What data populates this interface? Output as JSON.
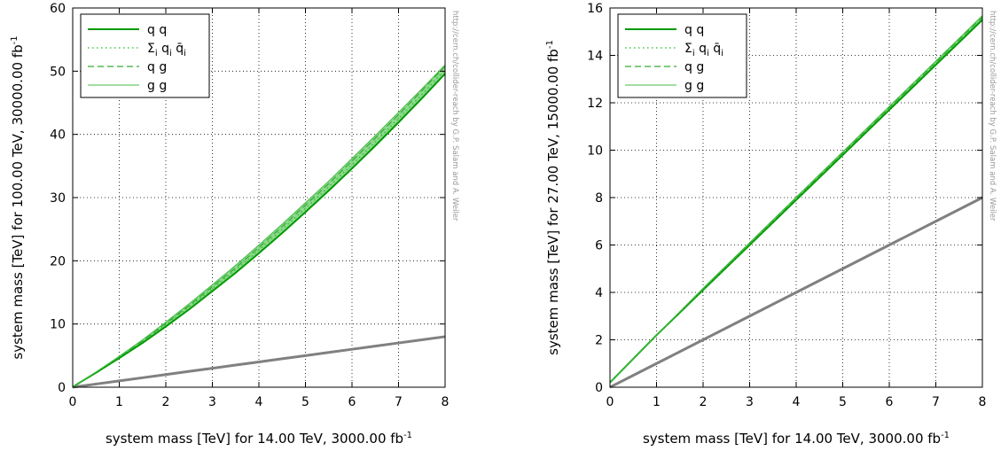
{
  "colors": {
    "qq": "#009900",
    "sum_qqbar": "#22bb22",
    "qg": "#33aa33",
    "gg": "#44bb44",
    "band_fill": "#66cc66",
    "reference": "#808080"
  },
  "credit": "http://cern.ch/collider-reach by G.P. Salam and A. Weiler",
  "chart_data": [
    {
      "type": "line",
      "xlabel": "system mass [TeV] for 14.00 TeV, 3000.00 fb",
      "xlabel_sup": "-1",
      "ylabel": "system mass [TeV] for 100.00 TeV, 30000.00 fb",
      "ylabel_sup": "-1",
      "xlim": [
        0,
        8
      ],
      "ylim": [
        0,
        60
      ],
      "xticks": [
        0,
        1,
        2,
        3,
        4,
        5,
        6,
        7,
        8
      ],
      "yticks": [
        0,
        10,
        20,
        30,
        40,
        50,
        60
      ],
      "grid": true,
      "legend_position": "top-left",
      "legend": [
        {
          "label": "q q",
          "style": "solid-thick"
        },
        {
          "label": "Σi qi q̄i",
          "label_main": "Σ",
          "label_sub1": "i",
          "label_mid": " q",
          "label_sub2": "i",
          "label_end": " q̄",
          "label_sub3": "i",
          "style": "dotted"
        },
        {
          "label": "q g",
          "style": "dashed"
        },
        {
          "label": "g g",
          "style": "solid-thin"
        }
      ],
      "x": [
        0,
        0.1,
        0.5,
        1,
        1.5,
        2,
        2.5,
        3,
        3.5,
        4,
        4.5,
        5,
        5.5,
        6,
        6.5,
        7,
        7.5,
        8
      ],
      "series": [
        {
          "name": "q q",
          "values": [
            0,
            0.5,
            2.3,
            4.6,
            7.0,
            9.6,
            12.3,
            15.2,
            18.1,
            21.2,
            24.4,
            27.7,
            31.1,
            34.6,
            38.2,
            41.9,
            45.7,
            49.6
          ]
        },
        {
          "name": "Σi qi q̄i",
          "values": [
            0,
            0.5,
            2.4,
            4.7,
            7.2,
            9.9,
            12.7,
            15.6,
            18.6,
            21.7,
            25.0,
            28.3,
            31.7,
            35.2,
            38.8,
            42.5,
            46.3,
            50.2
          ]
        },
        {
          "name": "q g",
          "values": [
            0,
            0.5,
            2.4,
            4.8,
            7.3,
            10.1,
            12.9,
            15.9,
            18.9,
            22.1,
            25.4,
            28.8,
            32.2,
            35.8,
            39.4,
            43.1,
            46.9,
            50.8
          ]
        },
        {
          "name": "g g",
          "values": [
            0,
            0.5,
            2.4,
            4.9,
            7.5,
            10.3,
            13.2,
            16.2,
            19.3,
            22.5,
            25.8,
            29.2,
            32.6,
            36.2,
            39.8,
            43.5,
            47.2,
            51.0
          ]
        },
        {
          "name": "",
          "role": "reference",
          "values": [
            0,
            0.1,
            0.5,
            1,
            1.5,
            2,
            2.5,
            3,
            3.5,
            4,
            4.5,
            5,
            5.5,
            6,
            6.5,
            7,
            7.5,
            8
          ]
        }
      ]
    },
    {
      "type": "line",
      "xlabel": "system mass [TeV] for 14.00 TeV, 3000.00 fb",
      "xlabel_sup": "-1",
      "ylabel": "system mass [TeV] for 27.00 TeV, 15000.00 fb",
      "ylabel_sup": "-1",
      "xlim": [
        0,
        8
      ],
      "ylim": [
        0,
        16
      ],
      "xticks": [
        0,
        1,
        2,
        3,
        4,
        5,
        6,
        7,
        8
      ],
      "yticks": [
        0,
        2,
        4,
        6,
        8,
        10,
        12,
        14,
        16
      ],
      "grid": true,
      "legend_position": "top-left",
      "legend": [
        {
          "label": "q q",
          "style": "solid-thick"
        },
        {
          "label": "Σi qi q̄i",
          "label_main": "Σ",
          "label_sub1": "i",
          "label_mid": " q",
          "label_sub2": "i",
          "label_end": " q̄",
          "label_sub3": "i",
          "style": "dotted"
        },
        {
          "label": "q g",
          "style": "dashed"
        },
        {
          "label": "g g",
          "style": "solid-thin"
        }
      ],
      "x": [
        0,
        0.1,
        0.5,
        1,
        2,
        3,
        4,
        5,
        6,
        7,
        8
      ],
      "series": [
        {
          "name": "q q",
          "values": [
            0.2,
            0.4,
            1.2,
            2.2,
            4.1,
            6.0,
            7.9,
            9.8,
            11.7,
            13.6,
            15.5
          ]
        },
        {
          "name": "Σi qi q̄i",
          "values": [
            0.2,
            0.4,
            1.2,
            2.2,
            4.12,
            6.03,
            7.94,
            9.84,
            11.75,
            13.66,
            15.56
          ]
        },
        {
          "name": "q g",
          "values": [
            0.2,
            0.4,
            1.2,
            2.2,
            4.15,
            6.06,
            7.98,
            9.89,
            11.8,
            13.71,
            15.62
          ]
        },
        {
          "name": "g g",
          "values": [
            0.2,
            0.4,
            1.2,
            2.2,
            4.18,
            6.1,
            8.02,
            9.93,
            11.85,
            13.76,
            15.68
          ]
        },
        {
          "name": "",
          "role": "reference",
          "values": [
            0,
            0.1,
            0.5,
            1,
            2,
            3,
            4,
            5,
            6,
            7,
            8
          ]
        }
      ]
    }
  ]
}
